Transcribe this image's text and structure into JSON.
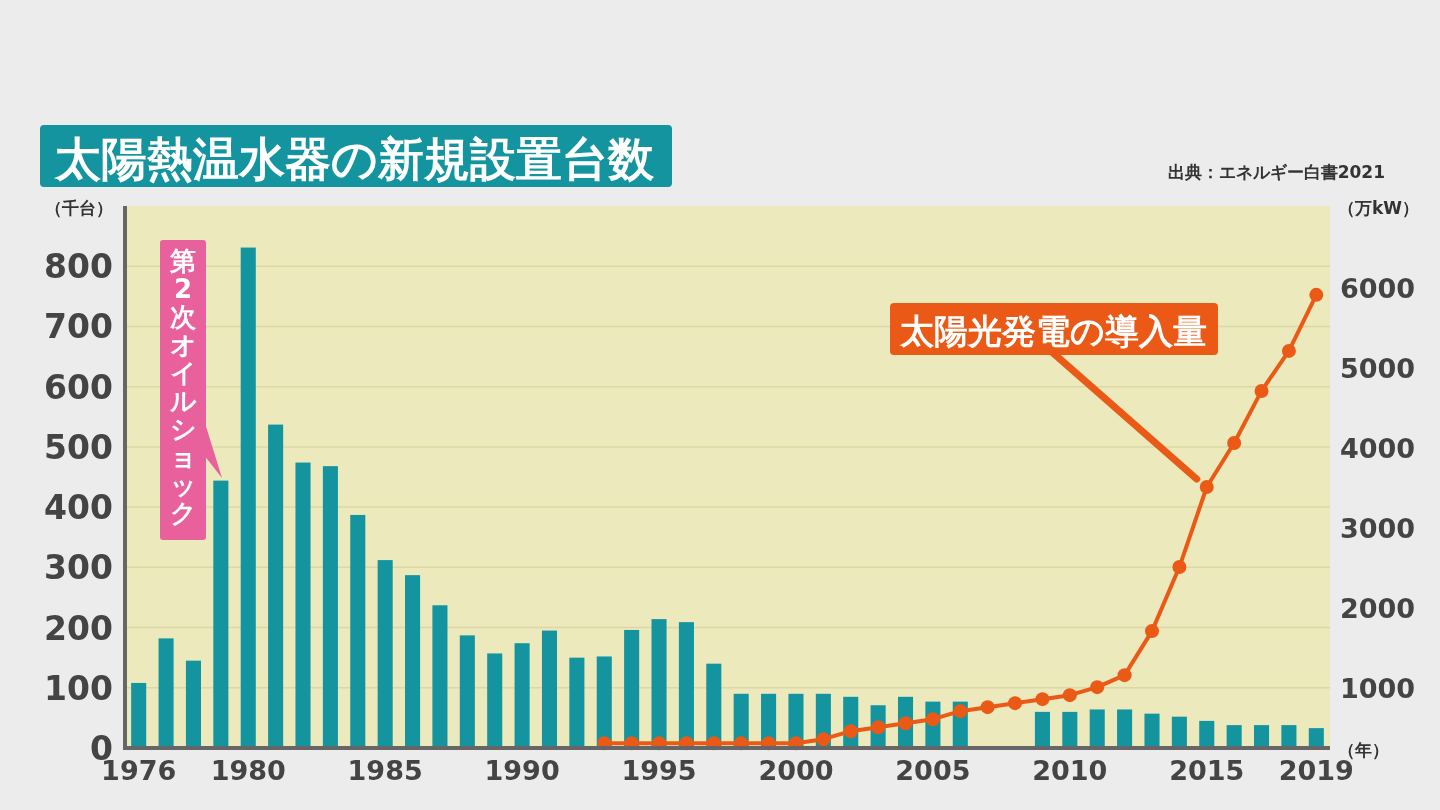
{
  "chart_data": {
    "type": "bar",
    "title": "太陽熱温水器の新規設置台数",
    "xlabel": "（年）",
    "ylabel": "（千台）",
    "y2label": "（万kW）",
    "annotations": [
      "第2次オイルショック",
      "出典：エネルギー白書2021"
    ],
    "categories": [
      "1976",
      null,
      null,
      null,
      "1980",
      null,
      null,
      null,
      null,
      "1985",
      null,
      null,
      null,
      null,
      "1990",
      null,
      null,
      null,
      null,
      "1995",
      null,
      null,
      null,
      null,
      "2000",
      null,
      null,
      null,
      null,
      "2005",
      null,
      null,
      null,
      null,
      "2010",
      null,
      null,
      null,
      null,
      "2015",
      null,
      null,
      null,
      "2019"
    ],
    "series": [
      {
        "color": "#13949e",
        "values": [
          108,
          182,
          145,
          444,
          831,
          537,
          474,
          468,
          387,
          312,
          287,
          237,
          187,
          157,
          174,
          195,
          150,
          152,
          196,
          214,
          209,
          140,
          90,
          90,
          90,
          90,
          85,
          71,
          85,
          77,
          77,
          null,
          null,
          60,
          60,
          64,
          64,
          57,
          52,
          45,
          38,
          38,
          38,
          33
        ]
      },
      {
        "type": "line",
        "axis": "y2",
        "name": "太陽光発電の導入量",
        "color": "#ea5a16",
        "marker": "circle",
        "values": [
          null,
          null,
          null,
          null,
          null,
          null,
          null,
          null,
          null,
          null,
          null,
          null,
          null,
          null,
          null,
          null,
          null,
          300,
          300,
          300,
          300,
          300,
          300,
          300,
          300,
          350,
          450,
          500,
          550,
          600,
          700,
          750,
          800,
          850,
          900,
          1000,
          1150,
          1700,
          2500,
          3500,
          4050,
          4700,
          5200,
          5900
        ]
      }
    ],
    "ylim": [
      0,
      900
    ],
    "yticks": [
      0,
      100,
      200,
      300,
      400,
      500,
      600,
      700,
      800
    ],
    "y2lim": [
      240,
      7010
    ],
    "y2ticks": [
      1000,
      2000,
      3000,
      4000,
      5000,
      6000
    ],
    "grid": "y"
  }
}
